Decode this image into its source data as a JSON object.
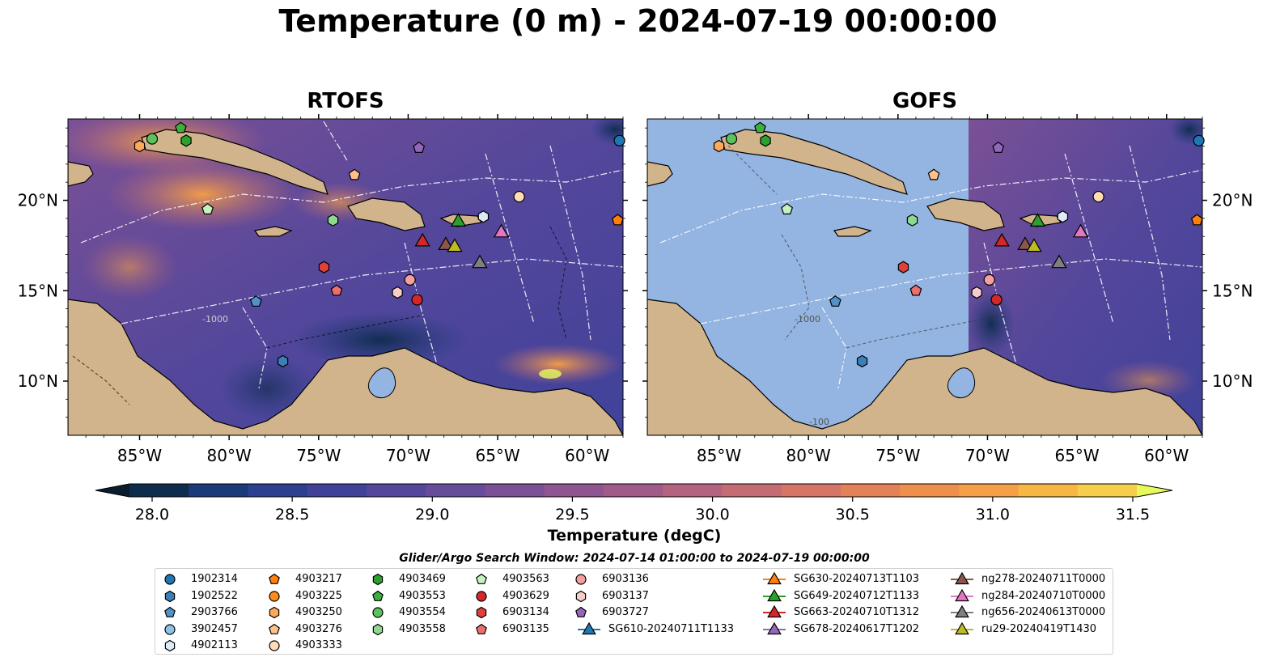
{
  "title": "Temperature (0 m) - 2024-07-19 00:00:00",
  "panels": [
    {
      "id": "rtofs",
      "title": "RTOFS"
    },
    {
      "id": "gofs",
      "title": "GOFS"
    }
  ],
  "map": {
    "lon_range": [
      -89,
      -58
    ],
    "lat_range": [
      7,
      24.5
    ],
    "lon_ticks": [
      "85°W",
      "80°W",
      "75°W",
      "70°W",
      "65°W",
      "60°W"
    ],
    "lat_ticks": [
      "20°N",
      "15°N",
      "10°N"
    ],
    "contour_labels": [
      "-1000",
      "-1000",
      "-100"
    ]
  },
  "colorbar": {
    "label": "Temperature (degC)",
    "min": 28.0,
    "max": 31.5,
    "tick_labels": [
      "28.0",
      "28.5",
      "29.0",
      "29.5",
      "30.0",
      "30.5",
      "31.0",
      "31.5"
    ],
    "colors": [
      "#0e2c4b",
      "#1b3a7a",
      "#2d3f8f",
      "#40429a",
      "#54479b",
      "#674c9a",
      "#7b5096",
      "#8f5590",
      "#a15b89",
      "#b3637f",
      "#c46b73",
      "#d47565",
      "#e38158",
      "#ee8f4d",
      "#f5a046",
      "#f8b645",
      "#f5cf4b"
    ],
    "under_color": "#0a1d2e",
    "over_color": "#e8fa5b"
  },
  "search_window": "Glider/Argo Search Window: 2024-07-14 01:00:00 to 2024-07-19 00:00:00",
  "colors": {
    "land": "#d2b48c",
    "gofs_nodata": "#94b4e1"
  },
  "legend": {
    "columns": [
      [
        {
          "label": "1902314",
          "marker": "circle",
          "color": "#1f77b4"
        },
        {
          "label": "1902522",
          "marker": "hexagon",
          "color": "#3a7fb8"
        },
        {
          "label": "2903766",
          "marker": "pentagon",
          "color": "#4f93c8"
        },
        {
          "label": "3902457",
          "marker": "circle",
          "color": "#8ec3e8"
        },
        {
          "label": "4902113",
          "marker": "hexagon",
          "color": "#dcebf7"
        }
      ],
      [
        {
          "label": "4903217",
          "marker": "pentagon",
          "color": "#ff7f0e"
        },
        {
          "label": "4903225",
          "marker": "circle",
          "color": "#ff8c1a"
        },
        {
          "label": "4903250",
          "marker": "hexagon",
          "color": "#ffa85a"
        },
        {
          "label": "4903276",
          "marker": "pentagon",
          "color": "#ffc08a"
        },
        {
          "label": "4903333",
          "marker": "circle",
          "color": "#ffdcb8"
        }
      ],
      [
        {
          "label": "4903469",
          "marker": "hexagon",
          "color": "#2ca02c"
        },
        {
          "label": "4903553",
          "marker": "pentagon",
          "color": "#3caf3c"
        },
        {
          "label": "4903554",
          "marker": "circle",
          "color": "#5cc35c"
        },
        {
          "label": "4903558",
          "marker": "hexagon",
          "color": "#8fd88f"
        }
      ],
      [
        {
          "label": "4903563",
          "marker": "pentagon",
          "color": "#c6f2c0"
        },
        {
          "label": "4903629",
          "marker": "circle",
          "color": "#d62728"
        },
        {
          "label": "6903134",
          "marker": "hexagon",
          "color": "#e0403c"
        },
        {
          "label": "6903135",
          "marker": "pentagon",
          "color": "#ee6e6e"
        }
      ],
      [
        {
          "label": "6903136",
          "marker": "circle",
          "color": "#f4a0a0"
        },
        {
          "label": "6903137",
          "marker": "hexagon",
          "color": "#f9cccc"
        },
        {
          "label": "6903727",
          "marker": "pentagon",
          "color": "#9467bd"
        },
        {
          "label": "SG610-20240711T1133",
          "marker": "triangle",
          "color": "#1f77b4"
        }
      ],
      [
        {
          "label": "SG630-20240713T1103",
          "marker": "triangle",
          "color": "#ff7f0e"
        },
        {
          "label": "SG649-20240712T1133",
          "marker": "triangle",
          "color": "#2ca02c"
        },
        {
          "label": "SG663-20240710T1312",
          "marker": "triangle",
          "color": "#d62728"
        },
        {
          "label": "SG678-20240617T1202",
          "marker": "triangle",
          "color": "#9467bd"
        }
      ],
      [
        {
          "label": "ng278-20240711T0000",
          "marker": "triangle",
          "color": "#8c564b"
        },
        {
          "label": "ng284-20240710T0000",
          "marker": "triangle",
          "color": "#e377c2"
        },
        {
          "label": "ng656-20240613T0000",
          "marker": "triangle",
          "color": "#7f7f7f"
        },
        {
          "label": "ru29-20240419T1430",
          "marker": "triangle",
          "color": "#bcbd22"
        }
      ]
    ]
  },
  "observations": [
    {
      "label": "1902314",
      "lon": -58.2,
      "lat": 23.3
    },
    {
      "label": "1902522",
      "lon": -77.0,
      "lat": 11.1
    },
    {
      "label": "2903766",
      "lon": -78.5,
      "lat": 14.4
    },
    {
      "label": "4903217",
      "lon": -58.3,
      "lat": 18.9
    },
    {
      "label": "4903250",
      "lon": -85.0,
      "lat": 23.0
    },
    {
      "label": "4903276",
      "lon": -73.0,
      "lat": 21.4
    },
    {
      "label": "4903333",
      "lon": -63.8,
      "lat": 20.2
    },
    {
      "label": "4903469",
      "lon": -82.4,
      "lat": 23.3
    },
    {
      "label": "4903553",
      "lon": -82.7,
      "lat": 24.0
    },
    {
      "label": "4903554",
      "lon": -84.3,
      "lat": 23.4
    },
    {
      "label": "4903558",
      "lon": -74.2,
      "lat": 18.9
    },
    {
      "label": "4903563",
      "lon": -81.2,
      "lat": 19.5
    },
    {
      "label": "4903629",
      "lon": -69.5,
      "lat": 14.5
    },
    {
      "label": "6903134",
      "lon": -74.7,
      "lat": 16.3
    },
    {
      "label": "6903135",
      "lon": -74.0,
      "lat": 15.0
    },
    {
      "label": "6903136",
      "lon": -69.9,
      "lat": 15.6
    },
    {
      "label": "6903137",
      "lon": -70.6,
      "lat": 14.9
    },
    {
      "label": "6903727",
      "lon": -69.4,
      "lat": 22.9
    },
    {
      "label": "4902113",
      "lon": -65.8,
      "lat": 19.1
    },
    {
      "label": "SG649-20240712T1133",
      "lon": -67.2,
      "lat": 18.8
    },
    {
      "label": "SG663-20240710T1312",
      "lon": -69.2,
      "lat": 17.7
    },
    {
      "label": "ng278-20240711T0000",
      "lon": -67.9,
      "lat": 17.5
    },
    {
      "label": "ru29-20240419T1430",
      "lon": -67.4,
      "lat": 17.4
    },
    {
      "label": "ng284-20240710T0000",
      "lon": -64.8,
      "lat": 18.2
    },
    {
      "label": "ng656-20240613T0000",
      "lon": -66.0,
      "lat": 16.5
    }
  ]
}
